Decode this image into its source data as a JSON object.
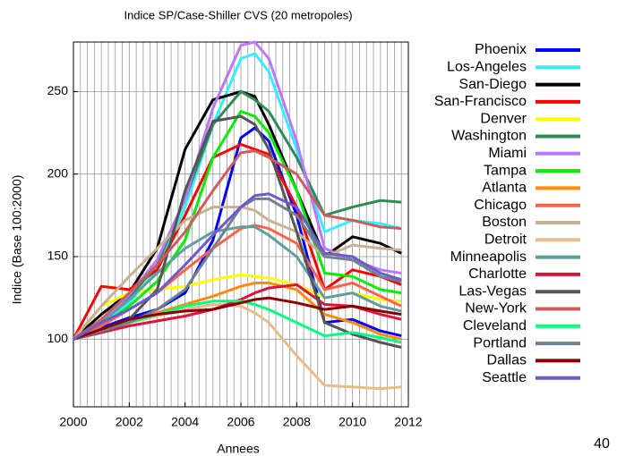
{
  "chart_data": {
    "type": "line",
    "title": "Indice SP/Case-Shiller CVS (20 metropoles)",
    "xlabel": "Annees",
    "ylabel": "Indice (Base 100:2000)",
    "x": [
      2000,
      2001,
      2002,
      2003,
      2004,
      2005,
      2006,
      2006.5,
      2007,
      2008,
      2009,
      2010,
      2011,
      2011.75
    ],
    "xlim": [
      2000,
      2012
    ],
    "xticks": [
      2000,
      2002,
      2004,
      2006,
      2008,
      2010,
      2012
    ],
    "ylim": [
      59,
      280
    ],
    "yticks": [
      100,
      150,
      200,
      250
    ],
    "grid": true,
    "legend": "right",
    "series": [
      {
        "name": "Phoenix",
        "color": "#0000ff",
        "values": [
          100,
          107,
          113,
          118,
          128,
          160,
          222,
          228,
          220,
          175,
          110,
          112,
          105,
          102
        ]
      },
      {
        "name": "Los-Angeles",
        "color": "#33eeff",
        "values": [
          100,
          110,
          122,
          142,
          180,
          230,
          270,
          273,
          262,
          215,
          165,
          172,
          170,
          167
        ]
      },
      {
        "name": "San-Diego",
        "color": "#000000",
        "values": [
          100,
          115,
          128,
          155,
          215,
          245,
          250,
          247,
          230,
          190,
          150,
          162,
          158,
          152
        ]
      },
      {
        "name": "San-Francisco",
        "color": "#ff0000",
        "values": [
          100,
          132,
          130,
          142,
          175,
          210,
          218,
          215,
          212,
          180,
          130,
          142,
          138,
          133
        ]
      },
      {
        "name": "Denver",
        "color": "#ffff00",
        "values": [
          100,
          120,
          128,
          130,
          132,
          136,
          139,
          138,
          137,
          133,
          125,
          128,
          124,
          123
        ]
      },
      {
        "name": "Washington",
        "color": "#2e8b57",
        "values": [
          100,
          110,
          125,
          145,
          185,
          230,
          250,
          245,
          238,
          210,
          175,
          180,
          184,
          183
        ]
      },
      {
        "name": "Miami",
        "color": "#bb77ff",
        "values": [
          100,
          110,
          127,
          148,
          185,
          240,
          278,
          280,
          270,
          220,
          155,
          148,
          142,
          140
        ]
      },
      {
        "name": "Tampa",
        "color": "#00ee00",
        "values": [
          100,
          108,
          120,
          135,
          160,
          210,
          238,
          235,
          225,
          190,
          140,
          138,
          130,
          128
        ]
      },
      {
        "name": "Atlanta",
        "color": "#ff8c00",
        "values": [
          100,
          106,
          111,
          116,
          121,
          126,
          132,
          134,
          134,
          130,
          115,
          110,
          103,
          100
        ]
      },
      {
        "name": "Chicago",
        "color": "#ff6347",
        "values": [
          100,
          108,
          118,
          128,
          142,
          155,
          167,
          169,
          167,
          158,
          130,
          134,
          126,
          120
        ]
      },
      {
        "name": "Boston",
        "color": "#c8b090",
        "values": [
          100,
          120,
          138,
          155,
          172,
          180,
          180,
          178,
          172,
          165,
          150,
          157,
          155,
          154
        ]
      },
      {
        "name": "Detroit",
        "color": "#e8bb88",
        "values": [
          100,
          106,
          110,
          114,
          118,
          121,
          120,
          116,
          110,
          90,
          72,
          71,
          70,
          71
        ]
      },
      {
        "name": "Minneapolis",
        "color": "#5f9ea0",
        "values": [
          100,
          110,
          124,
          140,
          155,
          165,
          168,
          168,
          163,
          150,
          125,
          128,
          120,
          117
        ]
      },
      {
        "name": "Charlotte",
        "color": "#dc143c",
        "values": [
          100,
          104,
          108,
          111,
          114,
          118,
          124,
          128,
          131,
          133,
          121,
          120,
          115,
          112
        ]
      },
      {
        "name": "Las-Vegas",
        "color": "#555555",
        "values": [
          100,
          105,
          112,
          130,
          190,
          232,
          235,
          230,
          215,
          165,
          110,
          103,
          98,
          95
        ]
      },
      {
        "name": "New-York",
        "color": "#cd5c5c",
        "values": [
          100,
          112,
          128,
          145,
          165,
          190,
          213,
          214,
          210,
          200,
          175,
          172,
          168,
          167
        ]
      },
      {
        "name": "Cleveland",
        "color": "#00ff7f",
        "values": [
          100,
          105,
          110,
          115,
          120,
          123,
          123,
          121,
          118,
          110,
          102,
          104,
          101,
          98
        ]
      },
      {
        "name": "Portland",
        "color": "#708090",
        "values": [
          100,
          105,
          110,
          118,
          130,
          155,
          180,
          185,
          185,
          175,
          150,
          148,
          138,
          135
        ]
      },
      {
        "name": "Dallas",
        "color": "#8b0000",
        "values": [
          100,
          106,
          112,
          115,
          117,
          118,
          122,
          124,
          125,
          122,
          118,
          120,
          117,
          115
        ]
      },
      {
        "name": "Seattle",
        "color": "#6a5acd",
        "values": [
          100,
          110,
          118,
          128,
          145,
          163,
          180,
          187,
          188,
          180,
          152,
          150,
          140,
          136
        ]
      }
    ]
  },
  "page_number": "40"
}
